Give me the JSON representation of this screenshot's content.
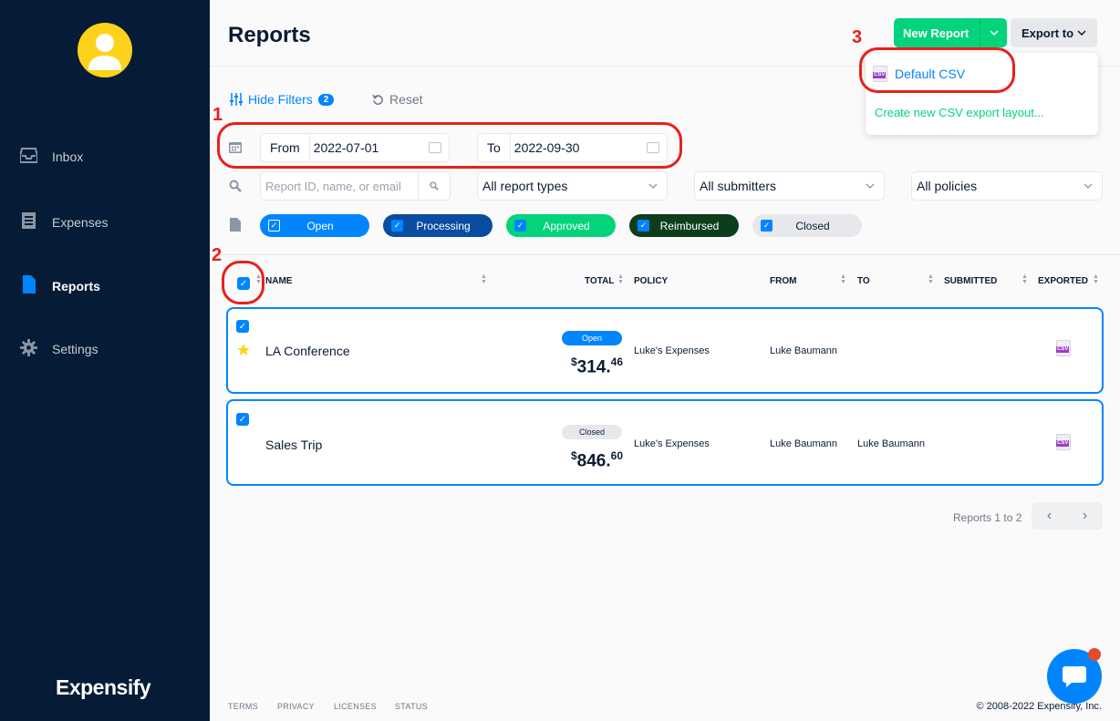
{
  "sidebar": {
    "items": [
      {
        "label": "Inbox",
        "icon": "inbox-icon"
      },
      {
        "label": "Expenses",
        "icon": "receipt-icon"
      },
      {
        "label": "Reports",
        "icon": "document-icon"
      },
      {
        "label": "Settings",
        "icon": "gear-icon"
      }
    ],
    "logo": "Expensify"
  },
  "header": {
    "title": "Reports",
    "new_report_label": "New Report",
    "export_label": "Export to"
  },
  "export_menu": {
    "default_csv": "Default CSV",
    "create_layout": "Create new CSV export layout..."
  },
  "filters": {
    "hide_filters_label": "Hide Filters",
    "filter_count": "2",
    "reset_label": "Reset",
    "from_label": "From",
    "from_value": "2022-07-01",
    "to_label": "To",
    "to_value": "2022-09-30",
    "search_placeholder": "Report ID, name, or email",
    "report_types": "All report types",
    "submitters": "All submitters",
    "policies": "All policies",
    "statuses": [
      {
        "label": "Open",
        "color": "#0185ff"
      },
      {
        "label": "Processing",
        "color": "#0a4ca0"
      },
      {
        "label": "Approved",
        "color": "#03d47c"
      },
      {
        "label": "Reimbursed",
        "color": "#0e3d1c"
      },
      {
        "label": "Closed",
        "color": "#e6e8eb"
      }
    ]
  },
  "table": {
    "columns": [
      "NAME",
      "TOTAL",
      "POLICY",
      "FROM",
      "TO",
      "SUBMITTED",
      "EXPORTED"
    ],
    "rows": [
      {
        "name": "LA Conference",
        "status": "Open",
        "total_dollars": "314.",
        "total_cents": "46",
        "policy": "Luke's Expenses",
        "from": "Luke Baumann",
        "to": "",
        "submitted": "",
        "starred": true
      },
      {
        "name": "Sales Trip",
        "status": "Closed",
        "total_dollars": "846.",
        "total_cents": "60",
        "policy": "Luke's Expenses",
        "from": "Luke Baumann",
        "to": "Luke Baumann",
        "submitted": "",
        "starred": false
      }
    ],
    "currency_symbol": "$"
  },
  "pager": {
    "text": "Reports 1 to 2"
  },
  "footer": {
    "links": [
      "TERMS",
      "PRIVACY",
      "LICENSES",
      "STATUS"
    ],
    "copyright": "© 2008-2022 Expensify, Inc."
  },
  "annotations": [
    "1",
    "2",
    "3"
  ]
}
